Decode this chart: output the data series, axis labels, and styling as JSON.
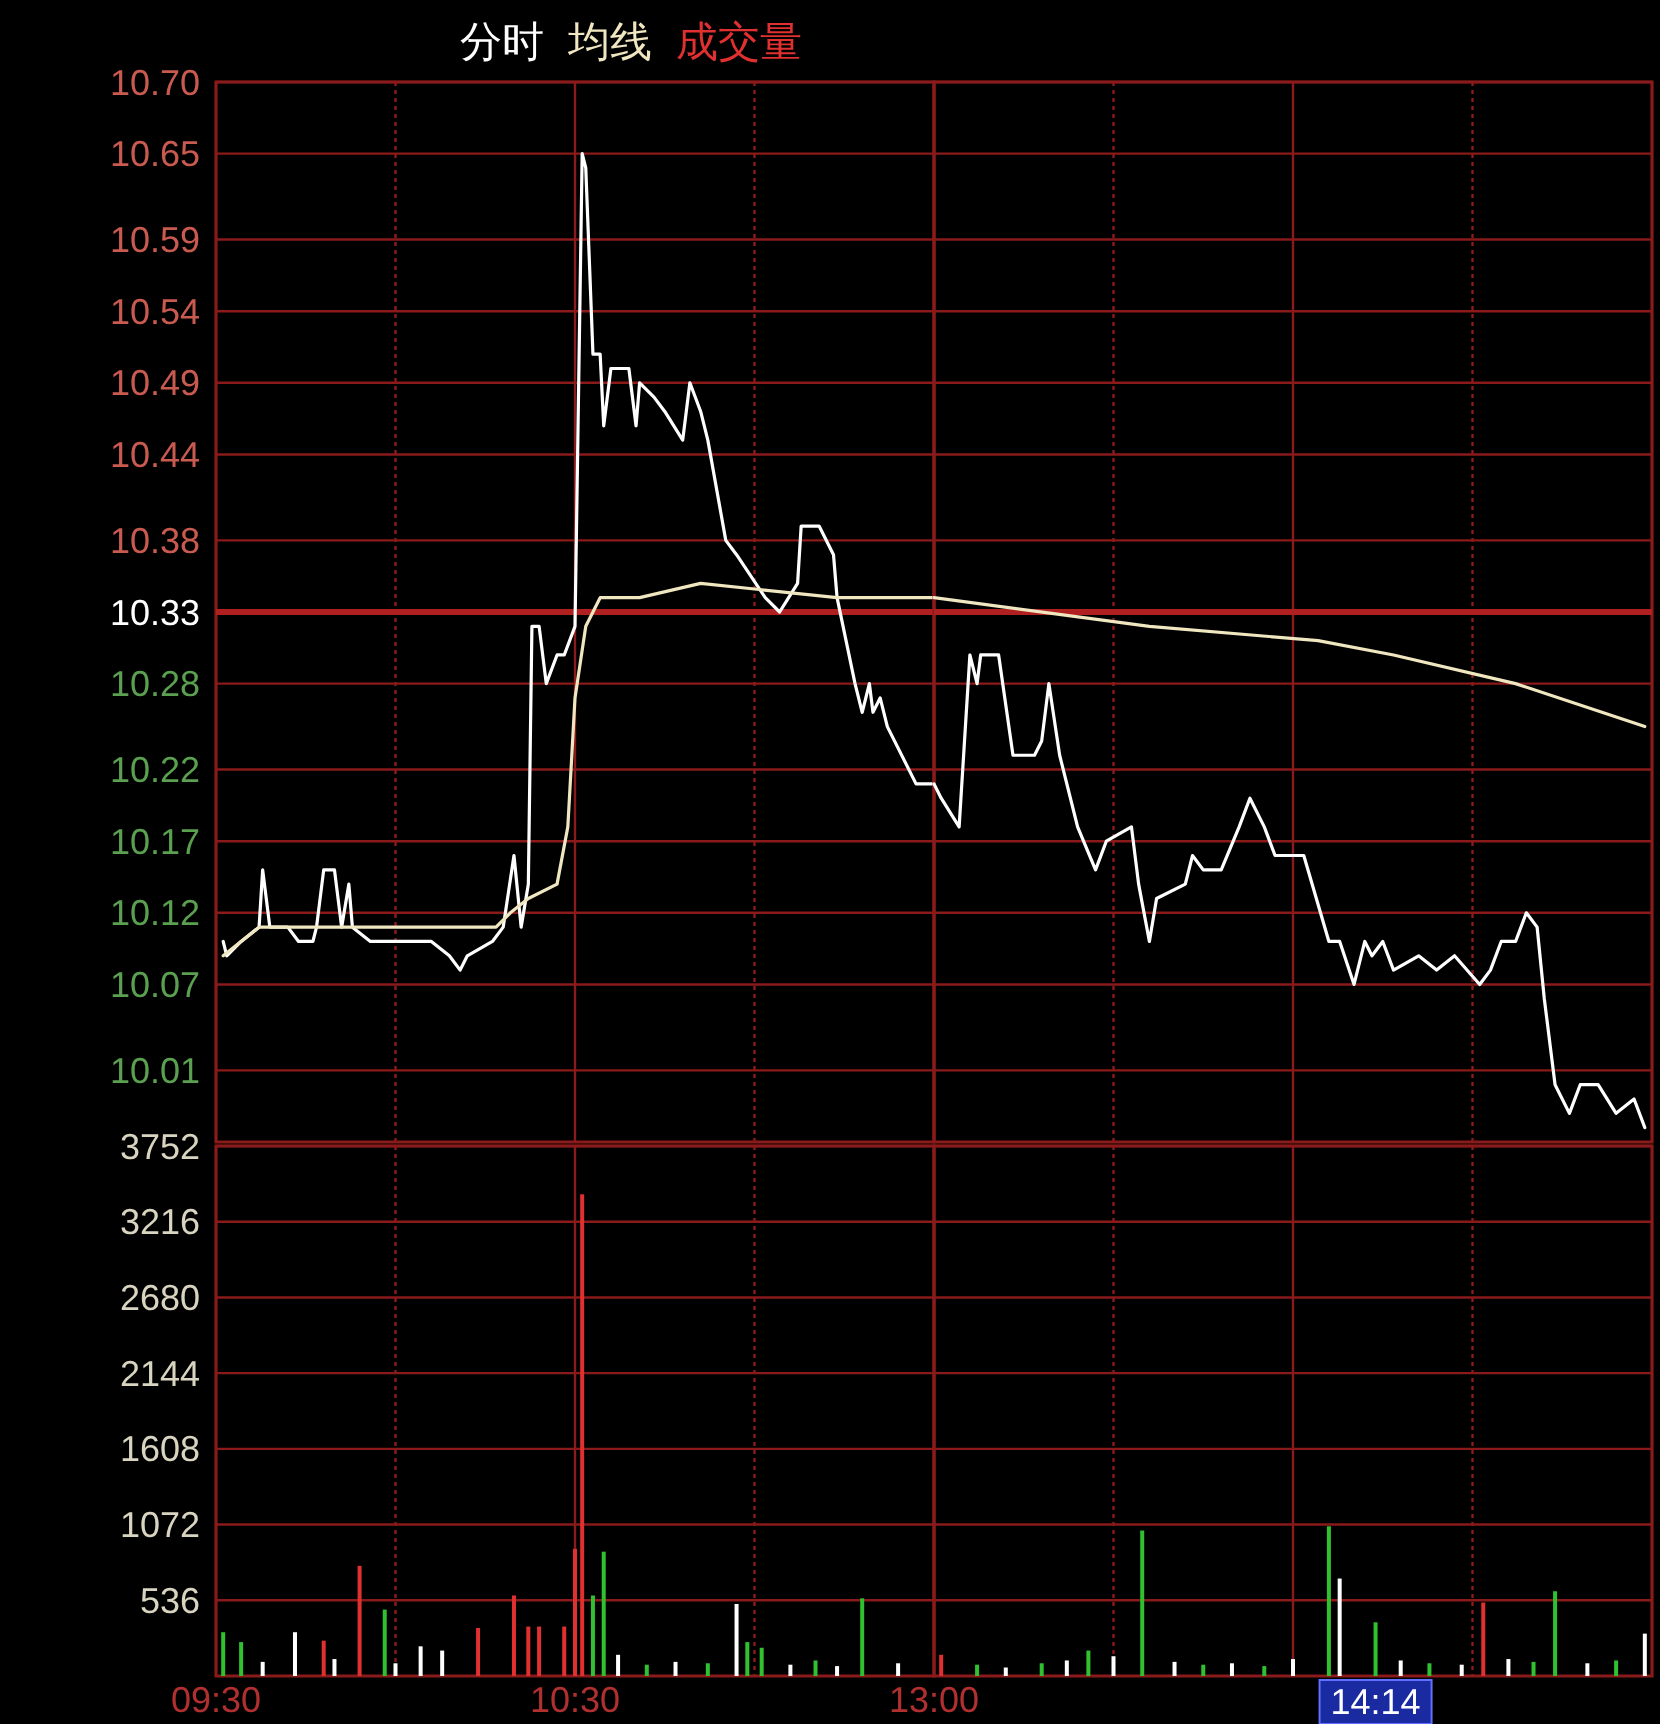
{
  "chart_data": [
    {
      "type": "line",
      "legend": "top left",
      "grid": true,
      "tick_labels": "y",
      "xlim": [
        9.5,
        11.5
      ],
      "ylim": [
        9.96,
        10.7
      ],
      "xticks": [
        {
          "value": 9.5,
          "label": null
        },
        {
          "value": 10,
          "label": null
        },
        {
          "value": 10.5,
          "label": null
        },
        {
          "value": 11,
          "label": null
        }
      ],
      "yticks": [
        {
          "value": 10.7,
          "label": "10.70"
        },
        {
          "value": 10.65,
          "label": "10.65"
        },
        {
          "value": 10.59,
          "label": "10.59"
        },
        {
          "value": 10.54,
          "label": "10.54"
        },
        {
          "value": 10.49,
          "label": "10.49"
        },
        {
          "value": 10.44,
          "label": "10.44"
        },
        {
          "value": 10.38,
          "label": "10.38"
        },
        {
          "value": 10.33,
          "label": "10.33"
        },
        {
          "value": 10.28,
          "label": "10.28"
        },
        {
          "value": 10.22,
          "label": "10.22"
        },
        {
          "value": 10.17,
          "label": "10.17"
        },
        {
          "value": 10.12,
          "label": "10.12"
        },
        {
          "value": 10.07,
          "label": "10.07"
        },
        {
          "value": 10.01,
          "label": "10.01"
        }
      ],
      "ref_lines": [
        {
          "axis": "y",
          "value": 10.33,
          "color": "#b02020"
        }
      ],
      "series": [
        {
          "name": "分时",
          "color": "#ffffff",
          "x": [
            9.52,
            9.53,
            9.57,
            9.62,
            9.63,
            9.65,
            9.7,
            9.73,
            9.77,
            9.78,
            9.8,
            9.83,
            9.85,
            9.87,
            9.88,
            9.93,
            10.1,
            10.15,
            10.18,
            10.2,
            10.27,
            10.3,
            10.33,
            10.35,
            10.37,
            10.38,
            10.4,
            10.42,
            10.45,
            10.47,
            10.5,
            10.52,
            10.53,
            10.55,
            10.57,
            10.58,
            10.6,
            10.65,
            10.67,
            10.68,
            10.72,
            10.75,
            10.8,
            10.82,
            10.85,
            10.87,
            10.92,
            10.95,
            11.03,
            11.07,
            11.12,
            11.13,
            11.18,
            11.22,
            11.23,
            11.28,
            11.3,
            11.32,
            11.33,
            11.35,
            11.37,
            11.45,
            11.5
          ],
          "values": [
            10.1,
            10.09,
            10.1,
            10.11,
            10.15,
            10.11,
            10.11,
            10.1,
            10.1,
            10.11,
            10.15,
            10.15,
            10.11,
            10.14,
            10.11,
            10.1,
            10.1,
            10.09,
            10.08,
            10.09,
            10.1,
            10.11,
            10.16,
            10.11,
            10.14,
            10.32,
            10.32,
            10.28,
            10.3,
            10.3,
            10.32,
            10.65,
            10.64,
            10.51,
            10.51,
            10.46,
            10.5,
            10.5,
            10.46,
            10.49,
            10.48,
            10.47,
            10.45,
            10.49,
            10.47,
            10.45,
            10.38,
            10.37,
            10.34,
            10.33,
            10.35,
            10.39,
            10.39,
            10.37,
            10.34,
            10.28,
            10.26,
            10.28,
            10.26,
            10.27,
            10.25,
            10.21,
            10.21
          ]
        },
        {
          "name": "均线",
          "color": "#f0e6c0",
          "x": [
            9.52,
            9.62,
            9.73,
            10.28,
            10.32,
            10.37,
            10.45,
            10.48,
            10.5,
            10.53,
            10.57,
            10.68,
            10.85,
            11.23,
            11.5
          ],
          "values": [
            10.09,
            10.11,
            10.11,
            10.11,
            10.12,
            10.13,
            10.14,
            10.18,
            10.27,
            10.32,
            10.34,
            10.34,
            10.35,
            10.34,
            10.34
          ]
        }
      ]
    },
    {
      "type": "line",
      "grid": true,
      "tick_labels": false,
      "xlim": [
        13,
        15
      ],
      "ylim": [
        9.96,
        10.7
      ],
      "xticks": [
        {
          "value": 13,
          "label": null
        },
        {
          "value": 13.5,
          "label": null
        },
        {
          "value": 14,
          "label": null
        },
        {
          "value": 14.5,
          "label": null
        },
        {
          "value": 15,
          "label": null
        }
      ],
      "yticks": [
        10.7,
        10.65,
        10.59,
        10.54,
        10.49,
        10.44,
        10.38,
        10.33,
        10.28,
        10.22,
        10.17,
        10.12,
        10.07,
        10.01
      ],
      "ref_lines": [
        {
          "axis": "y",
          "value": 10.33,
          "color": "#b02020"
        }
      ],
      "series": [
        {
          "color": "#ffffff",
          "x": [
            13,
            13.02,
            13.07,
            13.1,
            13.12,
            13.13,
            13.18,
            13.22,
            13.28,
            13.3,
            13.32,
            13.35,
            13.4,
            13.45,
            13.48,
            13.55,
            13.57,
            13.6,
            13.62,
            13.7,
            13.72,
            13.75,
            13.8,
            13.85,
            13.88,
            13.92,
            13.95,
            14.03,
            14.1,
            14.13,
            14.17,
            14.2,
            14.22,
            14.25,
            14.28,
            14.35,
            14.4,
            14.45,
            14.52,
            14.55,
            14.58,
            14.62,
            14.65,
            14.68,
            14.7,
            14.73,
            14.77,
            14.8,
            14.85,
            14.9,
            14.95,
            14.98
          ],
          "values": [
            10.21,
            10.2,
            10.18,
            10.3,
            10.28,
            10.3,
            10.3,
            10.23,
            10.23,
            10.24,
            10.28,
            10.23,
            10.18,
            10.15,
            10.17,
            10.18,
            10.14,
            10.1,
            10.13,
            10.14,
            10.16,
            10.15,
            10.15,
            10.18,
            10.2,
            10.18,
            10.16,
            10.16,
            10.1,
            10.1,
            10.07,
            10.1,
            10.09,
            10.1,
            10.08,
            10.09,
            10.08,
            10.09,
            10.07,
            10.08,
            10.1,
            10.1,
            10.12,
            10.11,
            10.06,
            10.0,
            9.98,
            10.0,
            10.0,
            9.98,
            9.99,
            9.97
          ]
        },
        {
          "color": "#f0e6c0",
          "x": [
            13,
            13.6,
            14.07,
            14.28,
            14.62,
            14.98
          ],
          "values": [
            10.34,
            10.32,
            10.31,
            10.3,
            10.28,
            10.25
          ]
        }
      ]
    },
    {
      "type": "bar",
      "legend": "top right",
      "grid": true,
      "xlim": [
        9.5,
        11.5
      ],
      "ylim": [
        0,
        3752
      ],
      "xticks": [
        {
          "value": 9.5,
          "label": "09:30"
        },
        {
          "value": 10,
          "label": null
        },
        {
          "value": 10.5,
          "label": "10:30"
        },
        {
          "value": 11,
          "label": null
        }
      ],
      "yticks": [
        536,
        1072,
        1608,
        2144,
        2680,
        3216,
        3752
      ],
      "series": [
        {
          "name": "成交量",
          "color": "#e03030",
          "x": [
            9.52,
            9.57,
            9.63,
            9.72,
            9.8,
            9.83,
            9.9,
            9.97,
            10,
            10.07,
            10.13,
            10.23,
            10.33,
            10.37,
            10.4,
            10.47,
            10.5,
            10.52,
            10.55,
            10.58,
            10.62,
            10.7,
            10.78,
            10.87,
            10.95,
            10.98,
            11.02,
            11.1,
            11.17,
            11.23,
            11.3,
            11.4
          ],
          "values": [
            310,
            240,
            100,
            310,
            250,
            120,
            780,
            470,
            90,
            210,
            180,
            340,
            570,
            350,
            350,
            350,
            900,
            3410,
            570,
            880,
            150,
            80,
            100,
            90,
            510,
            240,
            200,
            80,
            110,
            70,
            550,
            90
          ],
          "colors": [
            "#30c030",
            "#30c030",
            "#ffffff",
            "#ffffff",
            "#e03030",
            "#ffffff",
            "#e03030",
            "#30c030",
            "#ffffff",
            "#ffffff",
            "#ffffff",
            "#e03030",
            "#e03030",
            "#e03030",
            "#e03030",
            "#e03030",
            "#e03030",
            "#e03030",
            "#30c030",
            "#30c030",
            "#ffffff",
            "#30c030",
            "#ffffff",
            "#30c030",
            "#ffffff",
            "#30c030",
            "#30c030",
            "#ffffff",
            "#30c030",
            "#ffffff",
            "#30c030",
            "#ffffff"
          ]
        }
      ]
    },
    {
      "type": "bar",
      "grid": true,
      "tick_labels": "x",
      "xlim": [
        13,
        15
      ],
      "ylim": [
        0,
        3752
      ],
      "xticks": [
        {
          "value": 13,
          "label": "13:00"
        },
        {
          "value": 13.5,
          "label": null
        },
        {
          "value": 14,
          "label": null
        },
        {
          "value": 14.23,
          "label": "14:14"
        },
        {
          "value": 14.5,
          "label": null
        },
        {
          "value": 15,
          "label": null
        }
      ],
      "yticks": [
        536,
        1072,
        1608,
        2144,
        2680,
        3216,
        3752
      ],
      "series": [
        {
          "x": [
            13.02,
            13.12,
            13.2,
            13.3,
            13.37,
            13.43,
            13.5,
            13.58,
            13.67,
            13.75,
            13.83,
            13.92,
            14,
            14.1,
            14.13,
            14.23,
            14.3,
            14.38,
            14.47,
            14.53,
            14.6,
            14.67,
            14.73,
            14.82,
            14.9,
            14.98
          ],
          "values": [
            150,
            80,
            60,
            90,
            110,
            180,
            140,
            1030,
            100,
            80,
            90,
            70,
            120,
            1060,
            690,
            380,
            110,
            90,
            80,
            520,
            120,
            100,
            600,
            90,
            110,
            300
          ],
          "colors": [
            "#e03030",
            "#30c030",
            "#ffffff",
            "#30c030",
            "#ffffff",
            "#30c030",
            "#ffffff",
            "#30c030",
            "#ffffff",
            "#30c030",
            "#ffffff",
            "#30c030",
            "#ffffff",
            "#30c030",
            "#ffffff",
            "#30c030",
            "#ffffff",
            "#30c030",
            "#ffffff",
            "#e03030",
            "#ffffff",
            "#30c030",
            "#30c030",
            "#ffffff",
            "#30c030",
            "#ffffff"
          ]
        }
      ]
    }
  ]
}
